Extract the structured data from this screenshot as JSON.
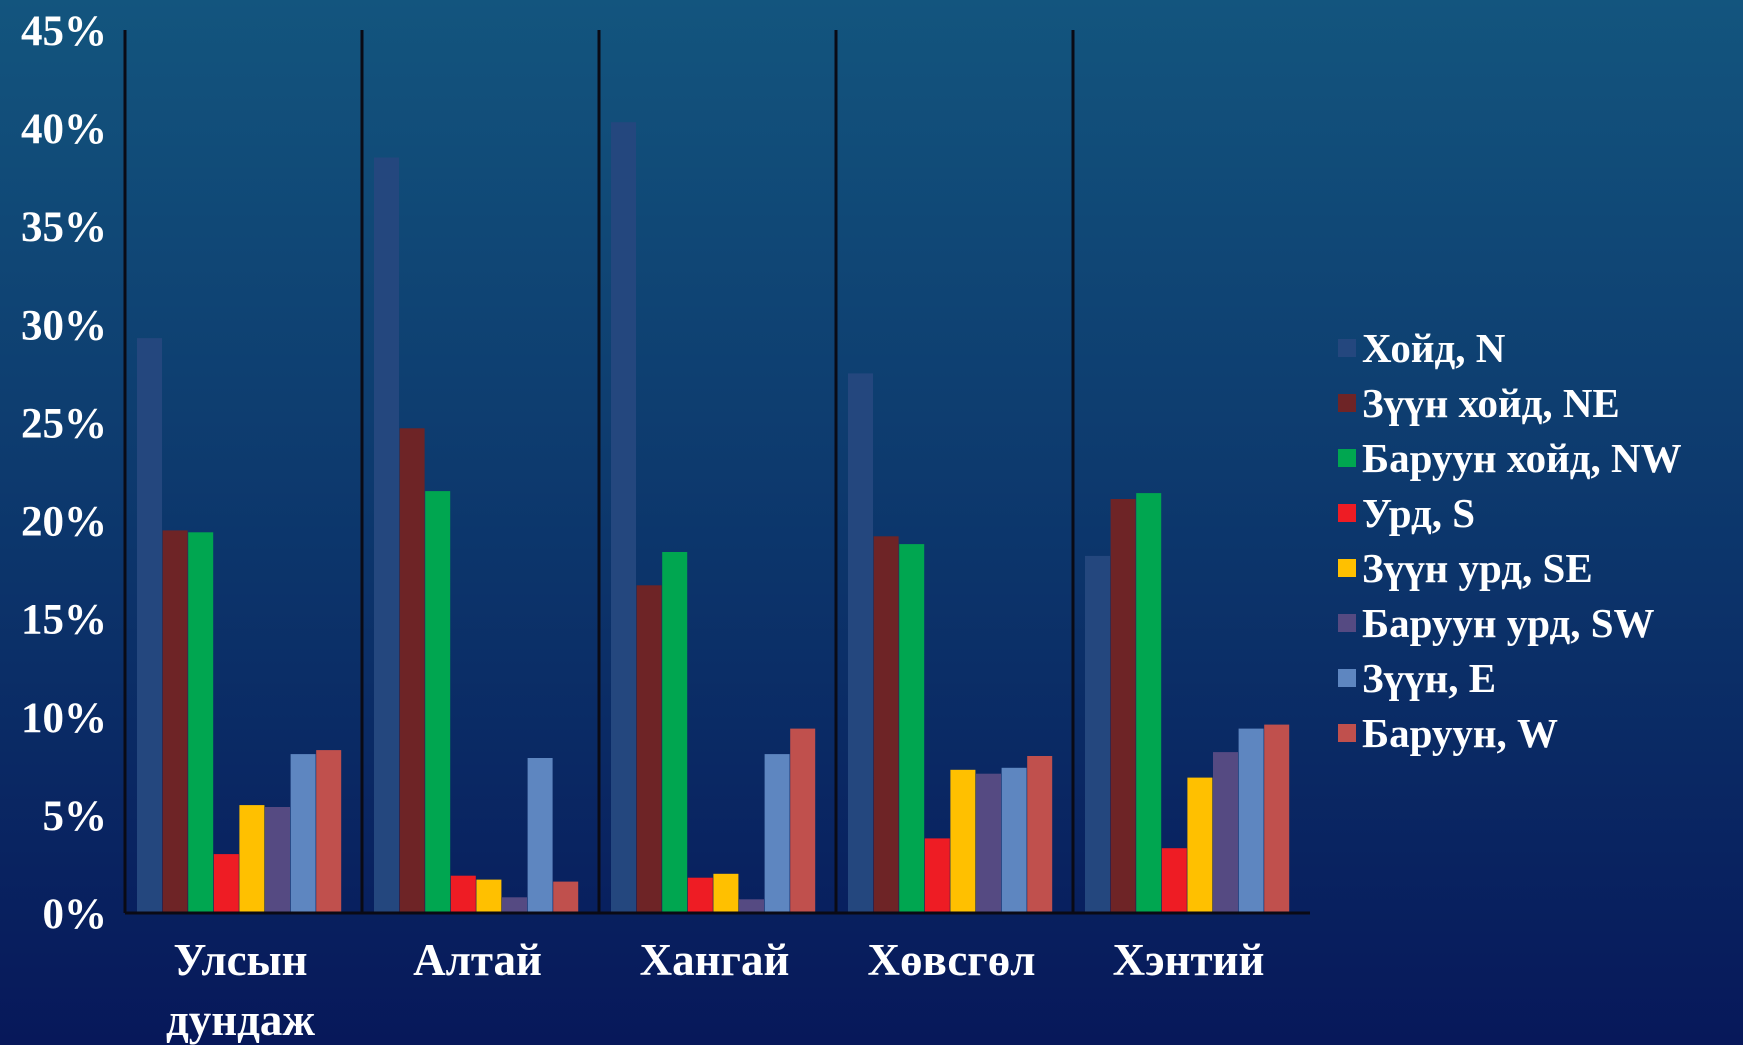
{
  "chart_data": {
    "type": "bar",
    "categories": [
      [
        "Улсын",
        "дундаж"
      ],
      [
        "Алтай"
      ],
      [
        "Хангай"
      ],
      [
        "Хөвсгөл"
      ],
      [
        "Хэнтий"
      ]
    ],
    "ylim": [
      0,
      45
    ],
    "y_ticks": [
      "0%",
      "5%",
      "10%",
      "15%",
      "20%",
      "25%",
      "30%",
      "35%",
      "40%",
      "45%"
    ],
    "y_tick_values": [
      0,
      5,
      10,
      15,
      20,
      25,
      30,
      35,
      40,
      45
    ],
    "legend_position": "right",
    "grid": false,
    "series": [
      {
        "name": "Хойд, N",
        "color": "#24477e",
        "values": [
          29.3,
          38.5,
          40.3,
          27.5,
          18.2
        ]
      },
      {
        "name": "Зүүн хойд, NE",
        "color": "#6e2426",
        "values": [
          19.5,
          24.7,
          16.7,
          19.2,
          21.1
        ]
      },
      {
        "name": "Баруун хойд, NW",
        "color": "#00a650",
        "values": [
          19.4,
          21.5,
          18.4,
          18.8,
          21.4
        ]
      },
      {
        "name": "Урд, S",
        "color": "#ee1c24",
        "values": [
          3.0,
          1.9,
          1.8,
          3.8,
          3.3
        ]
      },
      {
        "name": "Зүүн урд, SE",
        "color": "#ffc000",
        "values": [
          5.5,
          1.7,
          2.0,
          7.3,
          6.9
        ]
      },
      {
        "name": "Баруун урд, SW",
        "color": "#554a82",
        "values": [
          5.4,
          0.8,
          0.7,
          7.1,
          8.2
        ]
      },
      {
        "name": "Зүүн, E",
        "color": "#5e86c0",
        "values": [
          8.1,
          7.9,
          8.1,
          7.4,
          9.4
        ]
      },
      {
        "name": "Баруун, W",
        "color": "#c0504d",
        "values": [
          8.3,
          1.6,
          9.4,
          8.0,
          9.6
        ]
      }
    ]
  }
}
